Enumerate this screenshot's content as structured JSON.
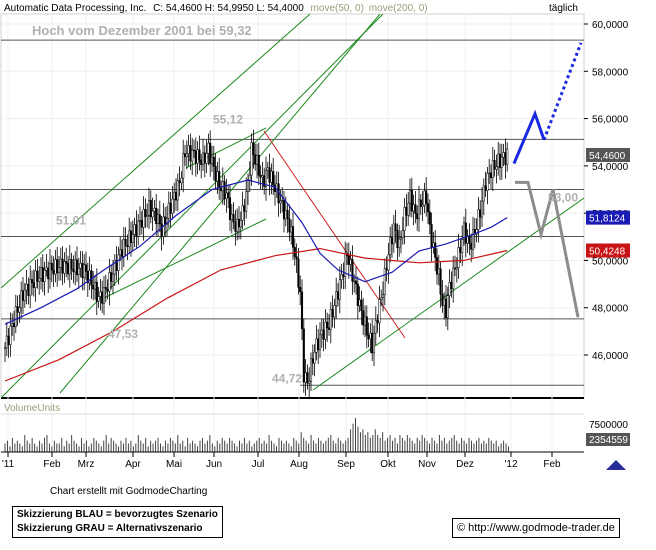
{
  "header": {
    "title": "Automatic Data Processing, Inc.",
    "quote": "C: 54,4600  H: 54,9950  L: 54,4000",
    "ma50": "move(50, 0)",
    "ma200": "move(200, 0)",
    "period": "täglich"
  },
  "chart_data": {
    "type": "candlestick",
    "x_ticks": [
      "'11",
      "Feb",
      "Mrz",
      "Apr",
      "Mai",
      "Jun",
      "Jul",
      "Aug",
      "Sep",
      "Okt",
      "Nov",
      "Dez",
      "'12",
      "Feb"
    ],
    "y_ticks": [
      "60,0000",
      "58,0000",
      "56,0000",
      "54,0000",
      "52,0000",
      "50,0000",
      "48,0000",
      "46,0000"
    ],
    "ylim": [
      44.0,
      60.6
    ],
    "volume_label": "VolumeUnits",
    "volume_ticks": [
      "7500000"
    ],
    "volume_last": "2354559",
    "price_tags": [
      {
        "label": "54,4600",
        "value": 54.46,
        "color": "#555555"
      },
      {
        "label": "51,8124",
        "value": 51.81,
        "color": "#1a1ab4"
      },
      {
        "label": "50,4248",
        "value": 50.42,
        "color": "#c81414"
      }
    ],
    "levels": [
      {
        "label": "Hoch vom Dezember 2001 bei 59,32",
        "value": 59.32
      },
      {
        "label": "55,12",
        "value": 55.12
      },
      {
        "label": "53,00",
        "value": 53.0
      },
      {
        "label": "51,01",
        "value": 51.01
      },
      {
        "label": "47,53",
        "value": 47.53
      },
      {
        "label": "44,72",
        "value": 44.72
      }
    ],
    "close_path": [
      [
        0,
        46.3
      ],
      [
        5,
        47.5
      ],
      [
        10,
        48.6
      ],
      [
        18,
        49.3
      ],
      [
        25,
        49.6
      ],
      [
        32,
        49.8
      ],
      [
        38,
        49.7
      ],
      [
        44,
        49.6
      ],
      [
        48,
        49.1
      ],
      [
        52,
        48.4
      ],
      [
        55,
        48.6
      ],
      [
        60,
        49.5
      ],
      [
        65,
        50.5
      ],
      [
        70,
        51.0
      ],
      [
        75,
        51.6
      ],
      [
        80,
        52.2
      ],
      [
        84,
        51.9
      ],
      [
        87,
        51.3
      ],
      [
        92,
        52.3
      ],
      [
        97,
        53.3
      ],
      [
        100,
        54.6
      ],
      [
        105,
        54.5
      ],
      [
        110,
        54.2
      ],
      [
        113,
        54.7
      ],
      [
        116,
        53.9
      ],
      [
        119,
        53.2
      ],
      [
        123,
        52.8
      ],
      [
        126,
        51.7
      ],
      [
        129,
        51.4
      ],
      [
        132,
        52.0
      ],
      [
        135,
        53.2
      ],
      [
        137,
        54.7
      ],
      [
        140,
        54.1
      ],
      [
        143,
        53.3
      ],
      [
        146,
        53.8
      ],
      [
        150,
        53.1
      ],
      [
        154,
        52.3
      ],
      [
        158,
        51.5
      ],
      [
        161,
        50.3
      ],
      [
        164,
        48.6
      ],
      [
        166,
        45.2
      ],
      [
        168,
        44.8
      ],
      [
        172,
        46.2
      ],
      [
        176,
        46.9
      ],
      [
        180,
        47.3
      ],
      [
        184,
        48.4
      ],
      [
        187,
        49.3
      ],
      [
        190,
        50.3
      ],
      [
        194,
        49.1
      ],
      [
        197,
        48.1
      ],
      [
        201,
        47.0
      ],
      [
        204,
        46.4
      ],
      [
        207,
        47.7
      ],
      [
        210,
        48.8
      ],
      [
        213,
        50.3
      ],
      [
        216,
        51.4
      ],
      [
        219,
        50.6
      ],
      [
        222,
        51.9
      ],
      [
        225,
        52.7
      ],
      [
        228,
        51.9
      ],
      [
        231,
        52.4
      ],
      [
        234,
        52.7
      ],
      [
        236,
        51.3
      ],
      [
        239,
        50.1
      ],
      [
        241,
        49.3
      ],
      [
        243,
        48.2
      ],
      [
        245,
        47.9
      ],
      [
        247,
        48.9
      ],
      [
        249,
        49.4
      ],
      [
        252,
        50.2
      ],
      [
        255,
        51.3
      ],
      [
        258,
        50.6
      ],
      [
        261,
        51.2
      ],
      [
        264,
        52.1
      ],
      [
        267,
        53.3
      ],
      [
        270,
        53.8
      ],
      [
        273,
        54.1
      ],
      [
        276,
        54.3
      ],
      [
        279,
        54.46
      ]
    ],
    "ma50_path": [
      [
        0,
        47.3
      ],
      [
        20,
        48.0
      ],
      [
        40,
        48.8
      ],
      [
        55,
        49.6
      ],
      [
        75,
        50.6
      ],
      [
        95,
        51.9
      ],
      [
        115,
        53.0
      ],
      [
        135,
        53.4
      ],
      [
        150,
        53.1
      ],
      [
        165,
        51.6
      ],
      [
        175,
        50.3
      ],
      [
        185,
        49.6
      ],
      [
        200,
        49.1
      ],
      [
        215,
        49.5
      ],
      [
        230,
        50.4
      ],
      [
        245,
        50.7
      ],
      [
        260,
        51.1
      ],
      [
        270,
        51.4
      ],
      [
        279,
        51.81
      ]
    ],
    "ma200_path": [
      [
        0,
        44.9
      ],
      [
        30,
        45.8
      ],
      [
        60,
        47.0
      ],
      [
        90,
        48.4
      ],
      [
        120,
        49.6
      ],
      [
        150,
        50.2
      ],
      [
        175,
        50.5
      ],
      [
        200,
        50.1
      ],
      [
        230,
        49.9
      ],
      [
        255,
        50.0
      ],
      [
        279,
        50.42
      ]
    ],
    "volume_series": [
      3,
      4,
      2,
      5,
      3,
      4,
      3,
      2,
      6,
      4,
      3,
      5,
      3,
      2,
      4,
      3,
      5,
      6,
      3,
      2,
      4,
      3,
      3,
      5,
      2,
      4,
      3,
      6,
      4,
      3,
      2,
      5,
      3,
      4,
      2,
      3,
      5,
      4,
      3,
      2,
      4,
      6,
      3,
      5,
      4,
      3,
      2,
      4,
      3,
      5,
      3,
      4,
      2,
      3,
      6,
      4,
      3,
      5,
      2,
      4,
      3,
      4,
      5,
      3,
      2,
      4,
      3,
      5,
      4,
      3,
      6,
      3,
      4,
      2,
      5,
      3,
      4,
      3,
      2,
      4,
      5,
      3,
      4,
      6,
      3,
      2,
      4,
      3,
      5,
      4,
      3,
      5,
      4,
      3,
      2,
      4,
      3,
      5,
      3,
      4,
      2,
      3,
      4,
      5,
      3,
      4,
      3,
      6,
      4,
      3,
      2,
      5,
      4,
      3,
      4,
      3,
      2,
      5,
      4,
      3,
      7,
      5,
      4,
      3,
      6,
      4,
      3,
      5,
      4,
      3,
      4,
      5,
      6,
      4,
      3,
      5,
      4,
      3,
      4,
      5,
      8,
      10,
      12,
      9,
      7,
      8,
      6,
      7,
      5,
      6,
      8,
      6,
      5,
      7,
      4,
      5,
      6,
      4,
      5,
      3,
      6,
      5,
      4,
      6,
      5,
      4,
      3,
      5,
      4,
      6,
      5,
      4,
      3,
      5,
      4,
      3,
      6,
      4,
      5,
      3,
      4,
      5,
      6,
      4,
      3,
      5,
      4,
      3,
      5,
      4,
      3,
      4,
      5,
      3,
      4,
      3,
      5,
      4,
      3,
      4,
      2,
      3,
      4,
      3,
      2
    ],
    "blue_scenario": [
      [
        514,
        54.1
      ],
      [
        535,
        56.2
      ],
      [
        544,
        55.1
      ]
    ],
    "blue_scenario_dotted": [
      [
        544,
        55.1
      ],
      [
        581,
        59.2
      ]
    ],
    "gray_scenario": [
      [
        515,
        53.3
      ],
      [
        528,
        53.3
      ],
      [
        541,
        51.1
      ],
      [
        553,
        53.0
      ],
      [
        578,
        47.6
      ]
    ]
  },
  "footer": {
    "credit": "Chart erstellt mit GodmodeCharting",
    "legend_blue": "Skizzierung BLAU = bevorzugtes Szenario",
    "legend_gray": "Skizzierung GRAU = Alternativszenario",
    "url": "http://www.godmode-trader.de",
    "copyright_glyph": "©"
  }
}
